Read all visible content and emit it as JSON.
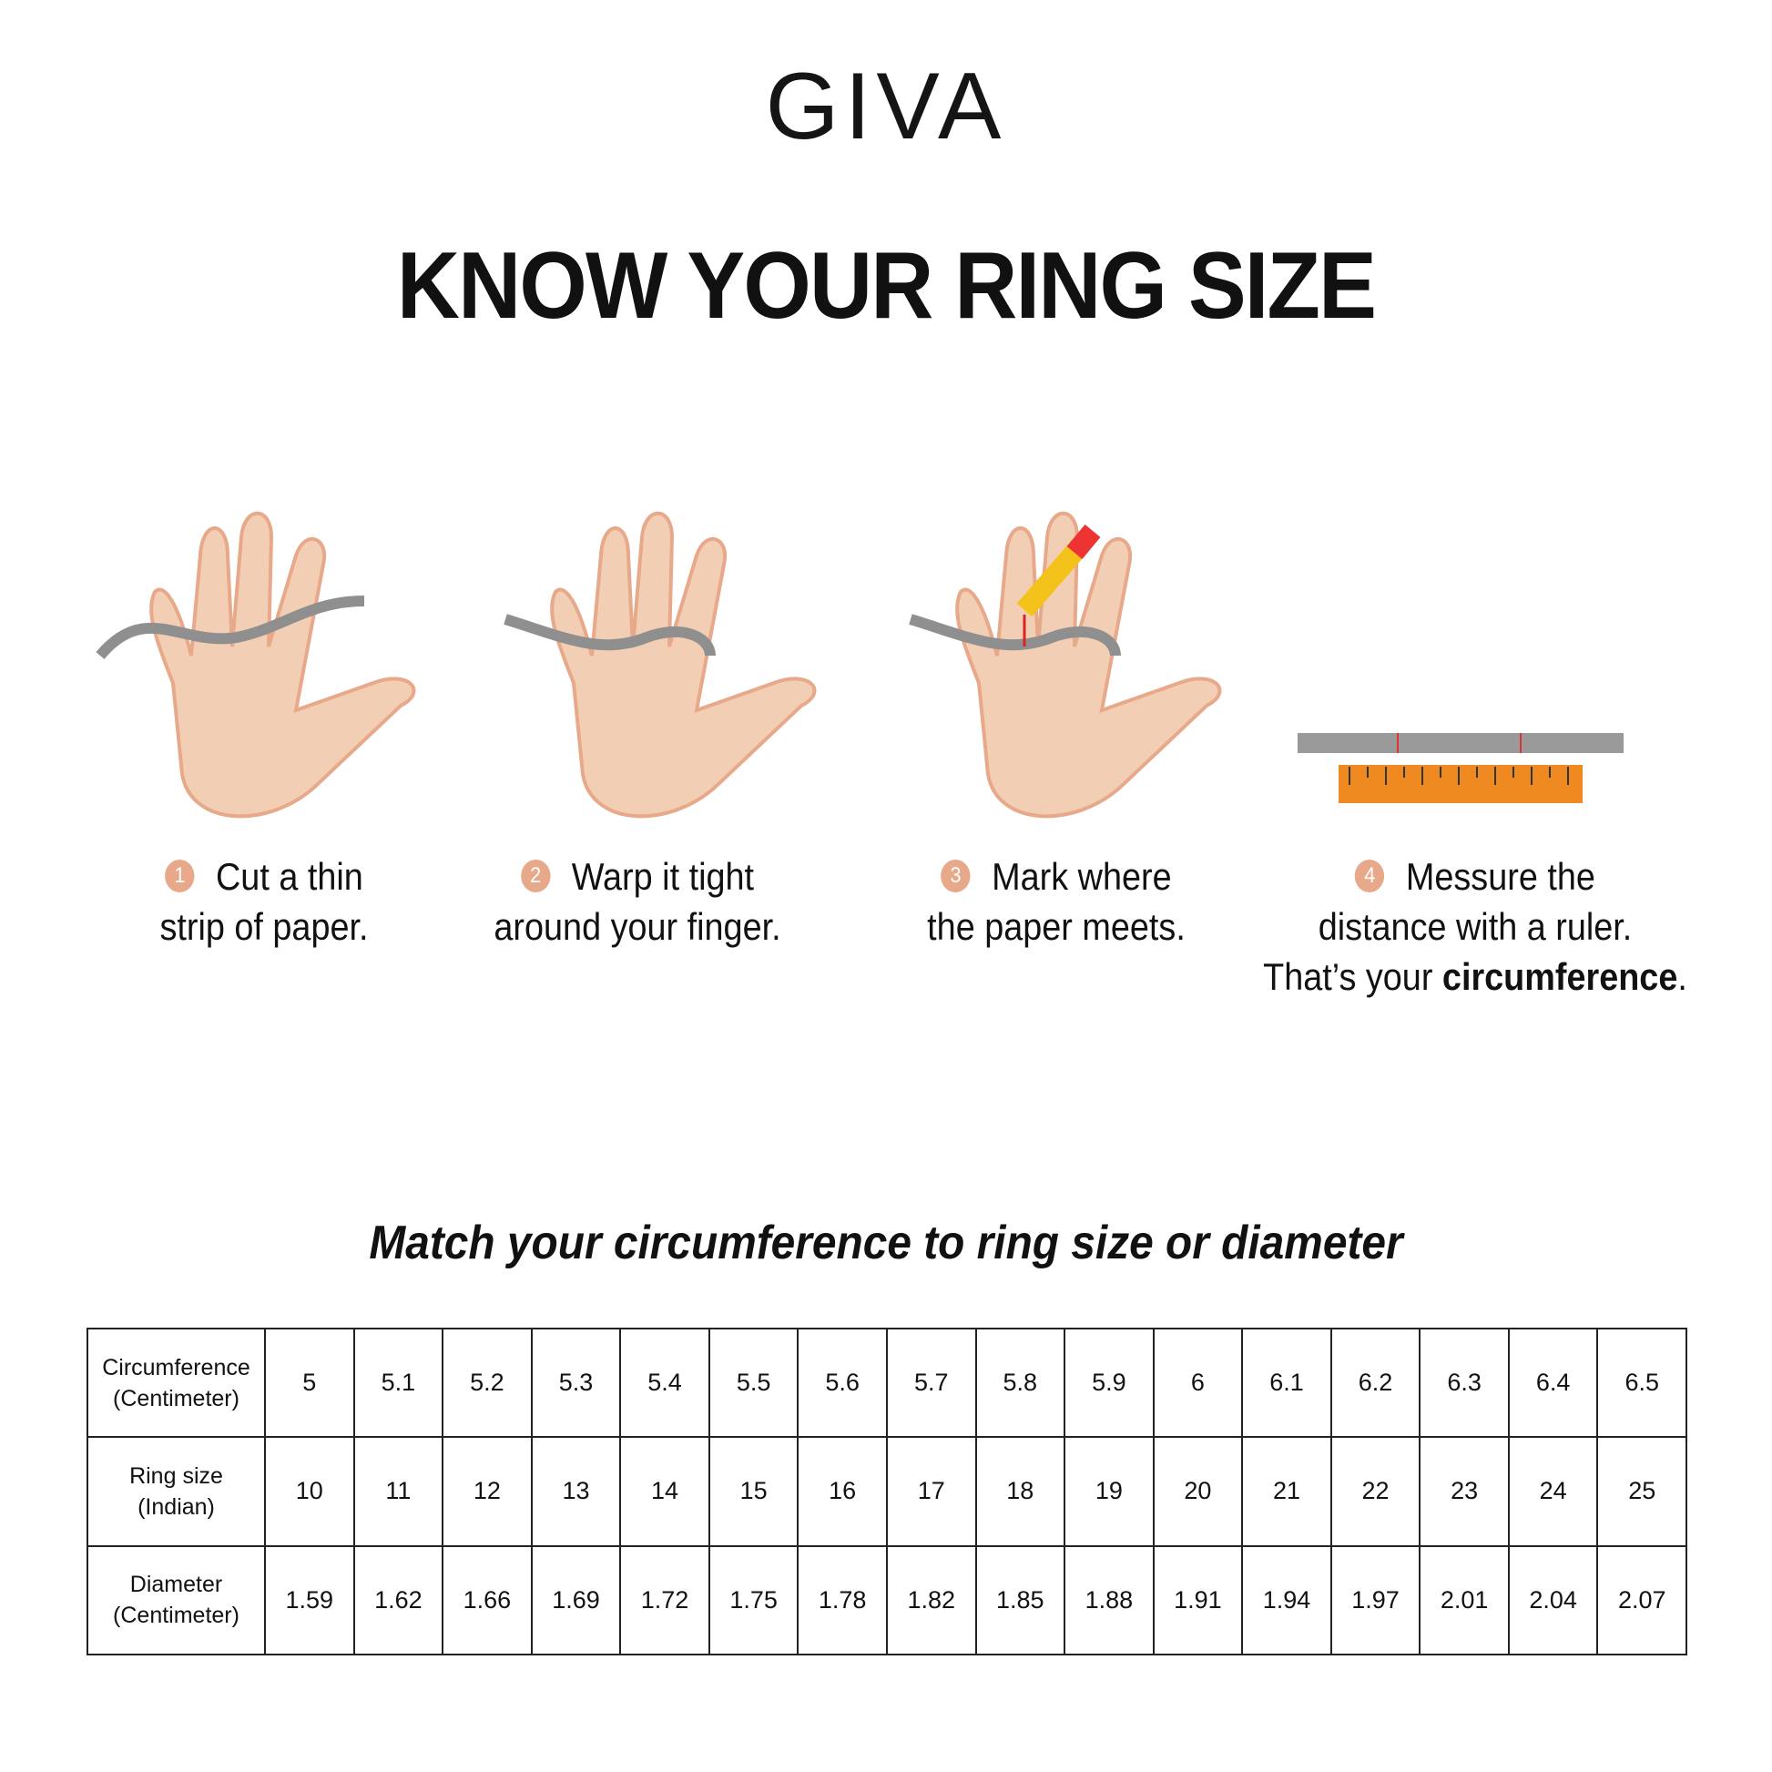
{
  "brand": {
    "logo": "GIVA"
  },
  "title": "KNOW YOUR RING SIZE",
  "colors": {
    "step_badge": "#e7a98a",
    "skin": "#f2cfb4",
    "paper_strip": "#8f8f8f",
    "ruler": "#ee8a1f",
    "text": "#111111"
  },
  "steps": [
    {
      "number": "1",
      "line1": "Cut a thin",
      "line2": "strip of paper.",
      "icon": "hand-with-paper-strip-icon"
    },
    {
      "number": "2",
      "line1": "Warp it tight",
      "line2": "around your finger.",
      "icon": "hand-wrapped-finger-icon"
    },
    {
      "number": "3",
      "line1": "Mark where",
      "line2": "the paper meets.",
      "icon": "hand-pencil-mark-icon"
    },
    {
      "number": "4",
      "line1": "Messure the",
      "line2": "distance with a ruler.",
      "line3_prefix": "That’s your ",
      "line3_bold": "circumference",
      "line3_suffix": ".",
      "icon": "ruler-icon"
    }
  ],
  "subtitle": "Match your circumference to ring size or diameter",
  "table": {
    "rows": [
      {
        "header_line1": "Circumference",
        "header_line2": "(Centimeter)",
        "values": [
          "5",
          "5.1",
          "5.2",
          "5.3",
          "5.4",
          "5.5",
          "5.6",
          "5.7",
          "5.8",
          "5.9",
          "6",
          "6.1",
          "6.2",
          "6.3",
          "6.4",
          "6.5"
        ]
      },
      {
        "header_line1": "Ring size",
        "header_line2": "(Indian)",
        "values": [
          "10",
          "11",
          "12",
          "13",
          "14",
          "15",
          "16",
          "17",
          "18",
          "19",
          "20",
          "21",
          "22",
          "23",
          "24",
          "25"
        ]
      },
      {
        "header_line1": "Diameter",
        "header_line2": "(Centimeter)",
        "values": [
          "1.59",
          "1.62",
          "1.66",
          "1.69",
          "1.72",
          "1.75",
          "1.78",
          "1.82",
          "1.85",
          "1.88",
          "1.91",
          "1.94",
          "1.97",
          "2.01",
          "2.04",
          "2.07"
        ]
      }
    ]
  }
}
